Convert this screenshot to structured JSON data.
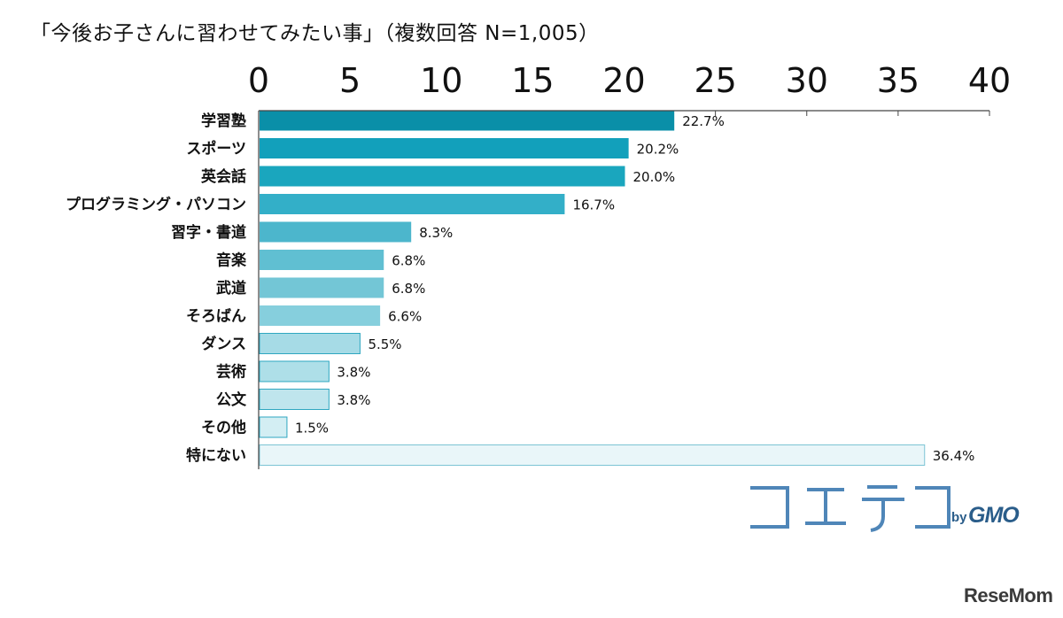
{
  "chart_data": {
    "type": "bar",
    "orientation": "horizontal",
    "title": "「今後お子さんに習わせてみたい事」（複数回答 N=1,005）",
    "xlim": [
      0,
      40
    ],
    "xticks": [
      "0",
      "5",
      "10",
      "15",
      "20",
      "25",
      "30",
      "35",
      "40"
    ],
    "categories": [
      "学習塾",
      "スポーツ",
      "英会話",
      "プログラミング・パソコン",
      "習字・書道",
      "音楽",
      "武道",
      "そろばん",
      "ダンス",
      "芸術",
      "公文",
      "その他",
      "特にない"
    ],
    "values": [
      22.7,
      20.2,
      20.0,
      16.7,
      8.3,
      6.8,
      6.8,
      6.6,
      5.5,
      3.8,
      3.8,
      1.5,
      36.4
    ],
    "value_labels": [
      "22.7%",
      "20.2%",
      "20.0%",
      "16.7%",
      "8.3%",
      "6.8%",
      "6.8%",
      "6.6%",
      "5.5%",
      "3.8%",
      "3.8%",
      "1.5%",
      "36.4%"
    ],
    "bar_colors": [
      "#0a8fa8",
      "#12a0bb",
      "#1aa6be",
      "#33afc8",
      "#4cb6cc",
      "#60bfd2",
      "#73c6d6",
      "#86cfdd",
      "#a6dbe6",
      "#aedfe8",
      "#bfe5ed",
      "#d3eef3",
      "#e9f6f9"
    ],
    "bar_border": "#2fa7c0",
    "axis_color": "#444444"
  },
  "brand": {
    "logo_text": "コエテコ",
    "by": "by",
    "gmo": "GMO",
    "color": "#4f86b8"
  },
  "watermark": "ReseMom"
}
